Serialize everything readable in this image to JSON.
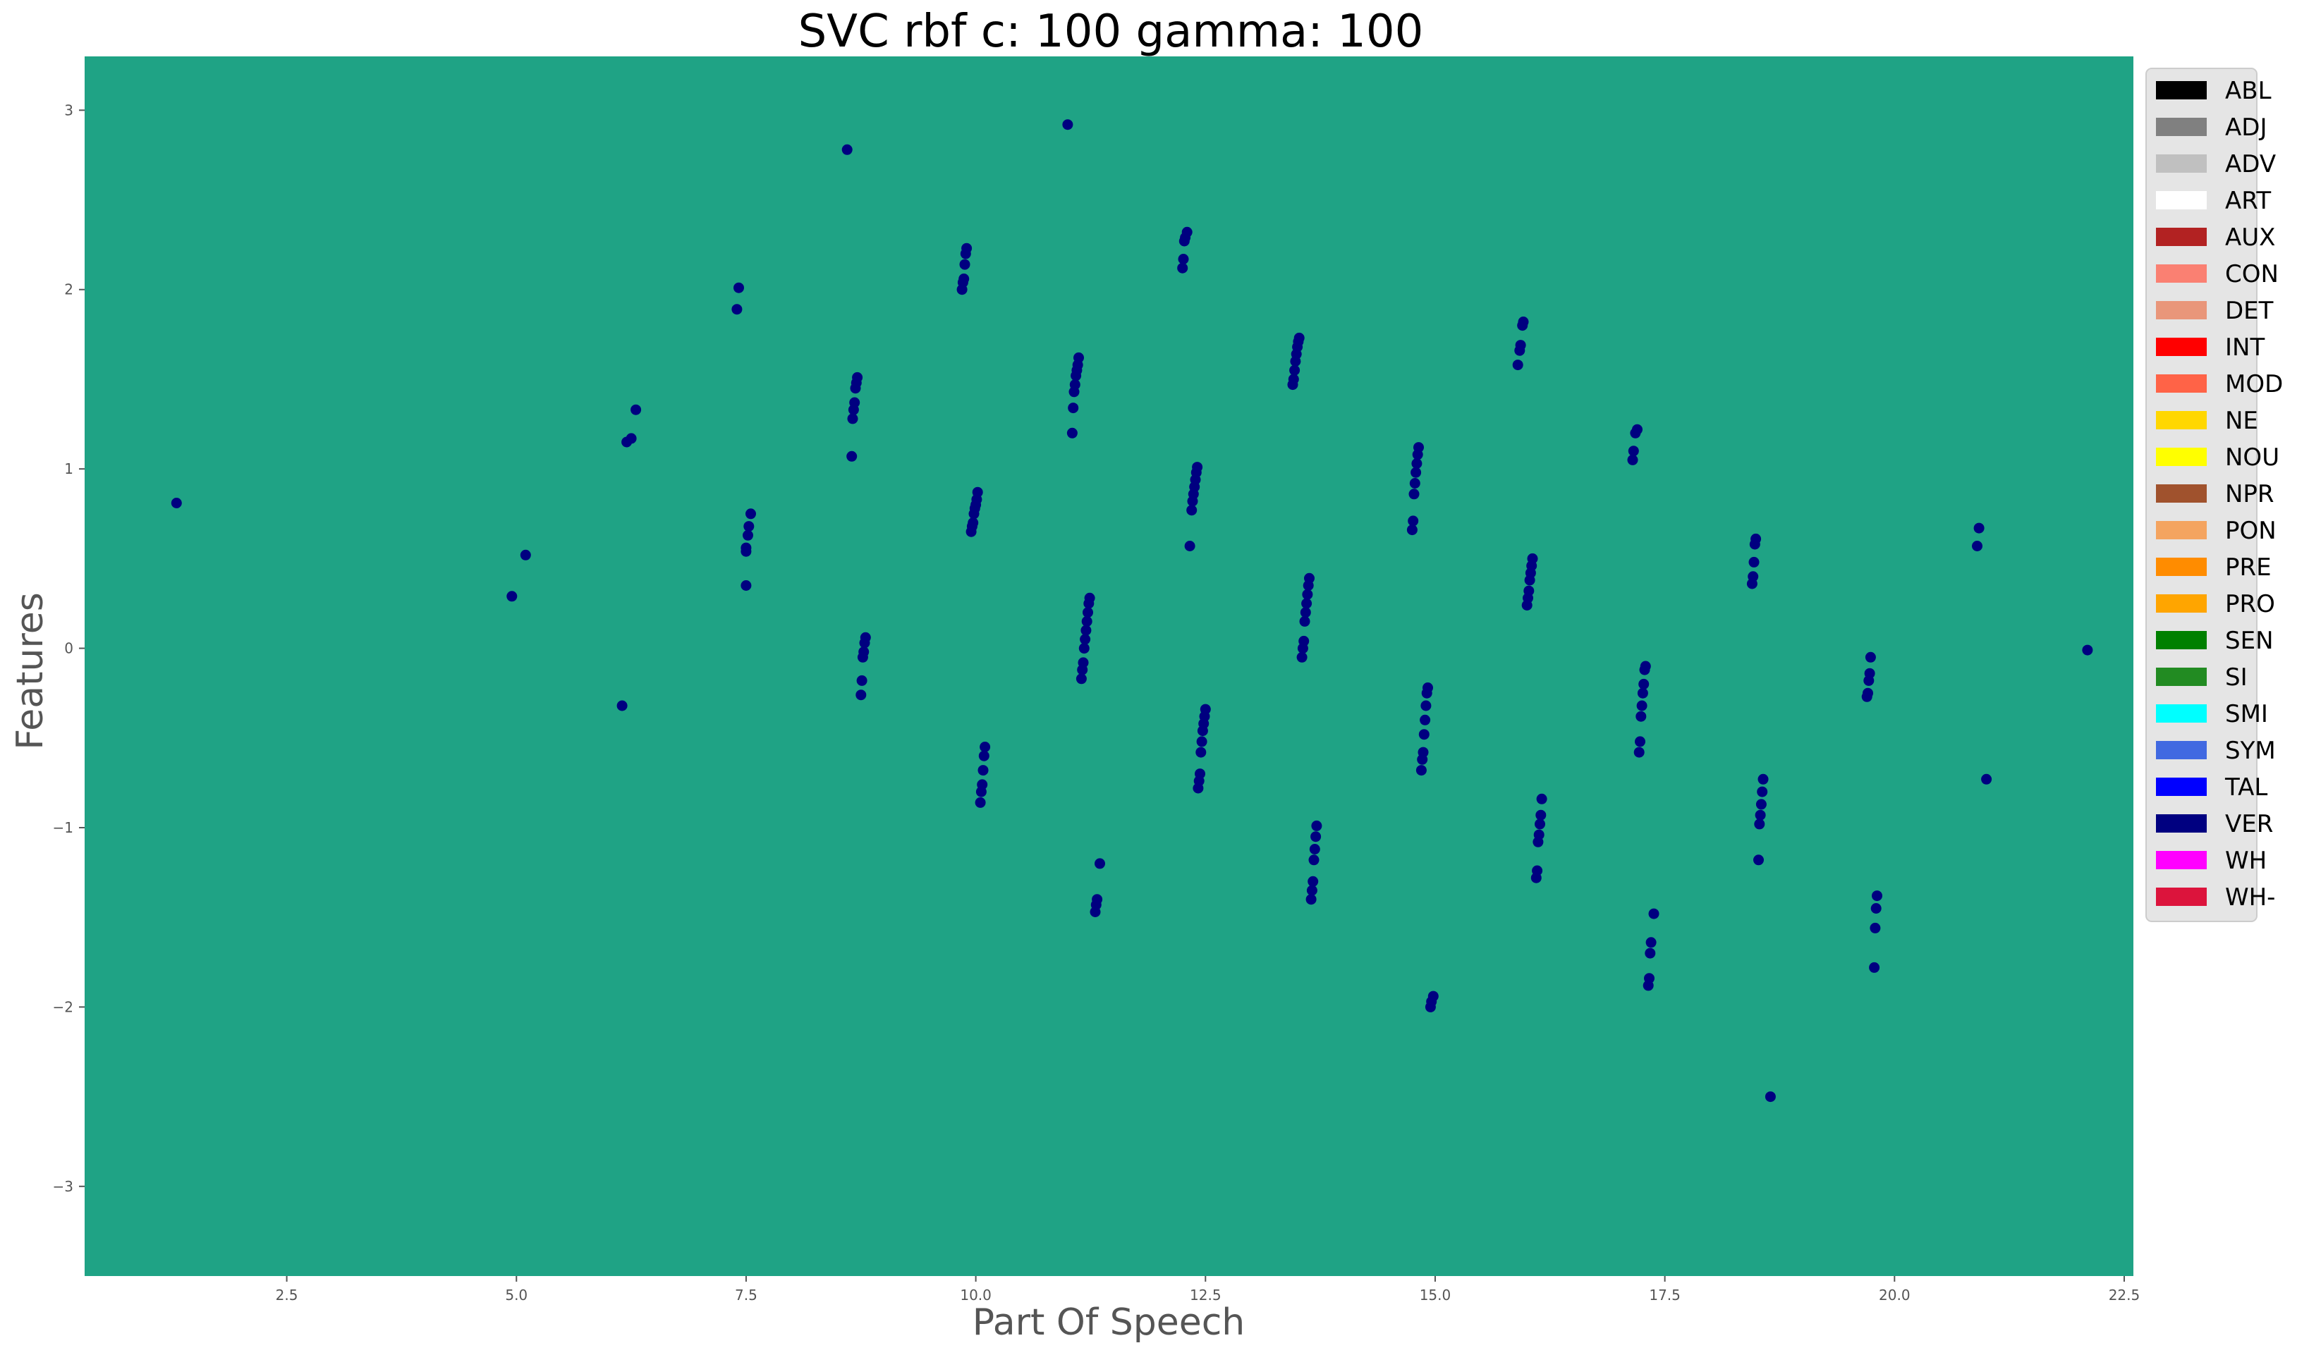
{
  "colors": {
    "plot_background": "#1fa385",
    "point": "#000080",
    "legend_background": "#e5e5e5",
    "legend_border": "#cccccc"
  },
  "chart_data": {
    "type": "scatter",
    "title": "SVC rbf c: 100 gamma: 100",
    "xlabel": "Part Of Speech",
    "ylabel": "Features",
    "xlim": [
      0.3,
      22.6
    ],
    "ylim": [
      -3.5,
      3.3
    ],
    "xticks": [
      2.5,
      5.0,
      7.5,
      10.0,
      12.5,
      15.0,
      17.5,
      20.0,
      22.5
    ],
    "yticks": [
      -3,
      -2,
      -1,
      0,
      1,
      2,
      3
    ],
    "grid": false,
    "legend_position": "right-outside",
    "legend": [
      {
        "label": "ABL",
        "color": "#000000"
      },
      {
        "label": "ADJ",
        "color": "#808080"
      },
      {
        "label": "ADV",
        "color": "#c0c0c0"
      },
      {
        "label": "ART",
        "color": "#ffffff"
      },
      {
        "label": "AUX",
        "color": "#b22222"
      },
      {
        "label": "CON",
        "color": "#fa8072"
      },
      {
        "label": "DET",
        "color": "#e9967a"
      },
      {
        "label": "INT",
        "color": "#ff0000"
      },
      {
        "label": "MOD",
        "color": "#ff6347"
      },
      {
        "label": "NE",
        "color": "#ffd700"
      },
      {
        "label": "NOU",
        "color": "#ffff00"
      },
      {
        "label": "NPR",
        "color": "#a0522d"
      },
      {
        "label": "PON",
        "color": "#f4a460"
      },
      {
        "label": "PRE",
        "color": "#ff8c00"
      },
      {
        "label": "PRO",
        "color": "#ffa500"
      },
      {
        "label": "SEN",
        "color": "#008000"
      },
      {
        "label": "SI",
        "color": "#228b22"
      },
      {
        "label": "SMI",
        "color": "#00ffff"
      },
      {
        "label": "SYM",
        "color": "#4169e1"
      },
      {
        "label": "TAL",
        "color": "#0000ff"
      },
      {
        "label": "VER",
        "color": "#000080"
      },
      {
        "label": "WH",
        "color": "#ff00ff"
      },
      {
        "label": "WH-",
        "color": "#dc143c"
      }
    ],
    "points": [
      [
        1.3,
        0.81
      ],
      [
        4.95,
        0.29
      ],
      [
        5.1,
        0.52
      ],
      [
        6.15,
        -0.32
      ],
      [
        6.2,
        1.15
      ],
      [
        6.25,
        1.17
      ],
      [
        6.3,
        1.33
      ],
      [
        7.4,
        1.89
      ],
      [
        7.42,
        2.01
      ],
      [
        7.5,
        0.35
      ],
      [
        7.5,
        0.54
      ],
      [
        7.5,
        0.56
      ],
      [
        7.52,
        0.63
      ],
      [
        7.53,
        0.68
      ],
      [
        7.55,
        0.75
      ],
      [
        8.6,
        2.78
      ],
      [
        8.65,
        1.07
      ],
      [
        8.66,
        1.28
      ],
      [
        8.67,
        1.33
      ],
      [
        8.68,
        1.37
      ],
      [
        8.69,
        1.45
      ],
      [
        8.7,
        1.48
      ],
      [
        8.71,
        1.51
      ],
      [
        8.75,
        -0.26
      ],
      [
        8.76,
        -0.18
      ],
      [
        8.77,
        -0.05
      ],
      [
        8.78,
        -0.02
      ],
      [
        8.79,
        0.03
      ],
      [
        8.8,
        0.06
      ],
      [
        9.85,
        2.0
      ],
      [
        9.86,
        2.04
      ],
      [
        9.87,
        2.06
      ],
      [
        9.88,
        2.14
      ],
      [
        9.89,
        2.2
      ],
      [
        9.9,
        2.23
      ],
      [
        9.95,
        0.65
      ],
      [
        9.96,
        0.68
      ],
      [
        9.97,
        0.7
      ],
      [
        9.98,
        0.75
      ],
      [
        9.99,
        0.78
      ],
      [
        10.0,
        0.8
      ],
      [
        10.01,
        0.83
      ],
      [
        10.02,
        0.87
      ],
      [
        10.05,
        -0.86
      ],
      [
        10.06,
        -0.8
      ],
      [
        10.07,
        -0.76
      ],
      [
        10.08,
        -0.68
      ],
      [
        10.09,
        -0.6
      ],
      [
        10.1,
        -0.55
      ],
      [
        11.0,
        2.92
      ],
      [
        11.05,
        1.2
      ],
      [
        11.06,
        1.34
      ],
      [
        11.07,
        1.43
      ],
      [
        11.08,
        1.47
      ],
      [
        11.09,
        1.52
      ],
      [
        11.1,
        1.55
      ],
      [
        11.11,
        1.58
      ],
      [
        11.12,
        1.62
      ],
      [
        11.15,
        -0.17
      ],
      [
        11.16,
        -0.12
      ],
      [
        11.17,
        -0.08
      ],
      [
        11.18,
        0.0
      ],
      [
        11.19,
        0.05
      ],
      [
        11.2,
        0.1
      ],
      [
        11.21,
        0.15
      ],
      [
        11.22,
        0.2
      ],
      [
        11.23,
        0.25
      ],
      [
        11.24,
        0.28
      ],
      [
        11.3,
        -1.47
      ],
      [
        11.31,
        -1.43
      ],
      [
        11.32,
        -1.4
      ],
      [
        11.35,
        -1.2
      ],
      [
        12.25,
        2.12
      ],
      [
        12.26,
        2.17
      ],
      [
        12.27,
        2.27
      ],
      [
        12.28,
        2.29
      ],
      [
        12.3,
        2.32
      ],
      [
        12.33,
        0.57
      ],
      [
        12.35,
        0.77
      ],
      [
        12.36,
        0.82
      ],
      [
        12.37,
        0.86
      ],
      [
        12.38,
        0.9
      ],
      [
        12.39,
        0.94
      ],
      [
        12.4,
        0.98
      ],
      [
        12.41,
        1.01
      ],
      [
        12.42,
        -0.78
      ],
      [
        12.43,
        -0.74
      ],
      [
        12.44,
        -0.7
      ],
      [
        12.45,
        -0.58
      ],
      [
        12.46,
        -0.52
      ],
      [
        12.47,
        -0.46
      ],
      [
        12.48,
        -0.42
      ],
      [
        12.49,
        -0.38
      ],
      [
        12.5,
        -0.34
      ],
      [
        13.45,
        1.47
      ],
      [
        13.46,
        1.5
      ],
      [
        13.47,
        1.55
      ],
      [
        13.48,
        1.6
      ],
      [
        13.49,
        1.64
      ],
      [
        13.5,
        1.68
      ],
      [
        13.51,
        1.71
      ],
      [
        13.52,
        1.73
      ],
      [
        13.55,
        -0.05
      ],
      [
        13.56,
        0.0
      ],
      [
        13.57,
        0.04
      ],
      [
        13.58,
        0.15
      ],
      [
        13.59,
        0.2
      ],
      [
        13.6,
        0.25
      ],
      [
        13.61,
        0.3
      ],
      [
        13.62,
        0.35
      ],
      [
        13.63,
        0.39
      ],
      [
        13.65,
        -1.4
      ],
      [
        13.66,
        -1.35
      ],
      [
        13.67,
        -1.3
      ],
      [
        13.68,
        -1.18
      ],
      [
        13.69,
        -1.12
      ],
      [
        13.7,
        -1.05
      ],
      [
        13.71,
        -0.99
      ],
      [
        14.75,
        0.66
      ],
      [
        14.76,
        0.71
      ],
      [
        14.77,
        0.86
      ],
      [
        14.78,
        0.92
      ],
      [
        14.79,
        0.98
      ],
      [
        14.8,
        1.03
      ],
      [
        14.81,
        1.08
      ],
      [
        14.82,
        1.12
      ],
      [
        14.85,
        -0.68
      ],
      [
        14.86,
        -0.62
      ],
      [
        14.87,
        -0.58
      ],
      [
        14.88,
        -0.48
      ],
      [
        14.89,
        -0.4
      ],
      [
        14.9,
        -0.32
      ],
      [
        14.91,
        -0.25
      ],
      [
        14.92,
        -0.22
      ],
      [
        14.95,
        -2.0
      ],
      [
        14.96,
        -1.97
      ],
      [
        14.98,
        -1.94
      ],
      [
        15.9,
        1.58
      ],
      [
        15.92,
        1.66
      ],
      [
        15.93,
        1.69
      ],
      [
        15.95,
        1.8
      ],
      [
        15.96,
        1.82
      ],
      [
        16.0,
        0.24
      ],
      [
        16.01,
        0.28
      ],
      [
        16.02,
        0.32
      ],
      [
        16.03,
        0.38
      ],
      [
        16.04,
        0.42
      ],
      [
        16.05,
        0.46
      ],
      [
        16.06,
        0.5
      ],
      [
        16.1,
        -1.28
      ],
      [
        16.11,
        -1.24
      ],
      [
        16.12,
        -1.08
      ],
      [
        16.13,
        -1.04
      ],
      [
        16.14,
        -0.98
      ],
      [
        16.15,
        -0.93
      ],
      [
        16.16,
        -0.84
      ],
      [
        17.15,
        1.05
      ],
      [
        17.16,
        1.1
      ],
      [
        17.18,
        1.2
      ],
      [
        17.2,
        1.22
      ],
      [
        17.22,
        -0.58
      ],
      [
        17.23,
        -0.52
      ],
      [
        17.24,
        -0.38
      ],
      [
        17.25,
        -0.32
      ],
      [
        17.26,
        -0.25
      ],
      [
        17.27,
        -0.2
      ],
      [
        17.28,
        -0.12
      ],
      [
        17.29,
        -0.1
      ],
      [
        17.32,
        -1.88
      ],
      [
        17.33,
        -1.84
      ],
      [
        17.34,
        -1.7
      ],
      [
        17.35,
        -1.64
      ],
      [
        17.38,
        -1.48
      ],
      [
        18.45,
        0.36
      ],
      [
        18.46,
        0.4
      ],
      [
        18.47,
        0.48
      ],
      [
        18.48,
        0.58
      ],
      [
        18.49,
        0.61
      ],
      [
        18.52,
        -1.18
      ],
      [
        18.53,
        -0.98
      ],
      [
        18.54,
        -0.93
      ],
      [
        18.55,
        -0.87
      ],
      [
        18.56,
        -0.8
      ],
      [
        18.57,
        -0.73
      ],
      [
        18.65,
        -2.5
      ],
      [
        19.7,
        -0.27
      ],
      [
        19.71,
        -0.25
      ],
      [
        19.72,
        -0.18
      ],
      [
        19.73,
        -0.14
      ],
      [
        19.74,
        -0.05
      ],
      [
        19.78,
        -1.78
      ],
      [
        19.79,
        -1.56
      ],
      [
        19.8,
        -1.45
      ],
      [
        19.81,
        -1.38
      ],
      [
        20.9,
        0.57
      ],
      [
        20.92,
        0.67
      ],
      [
        21.0,
        -0.73
      ],
      [
        22.1,
        -0.01
      ]
    ]
  }
}
